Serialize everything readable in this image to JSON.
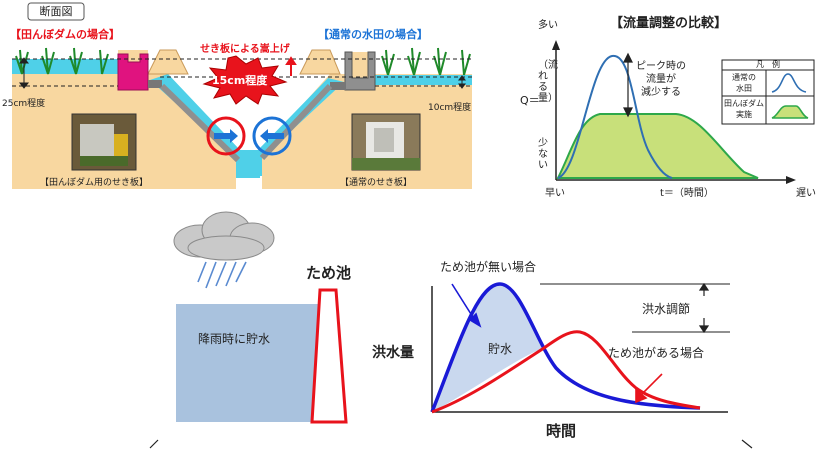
{
  "cross_section": {
    "tag": "断面図",
    "left_case": "【田んぼダムの場合】",
    "right_case": "【通常の水田の場合】",
    "weir_raise_label": "せき板による嵩上げ",
    "raise_amount": "15cm程度",
    "left_depth": "25cm程度",
    "right_depth": "10cm程度",
    "left_photo_caption": "【田んぼダム用のせき板】",
    "right_photo_caption": "【通常のせき板】",
    "colors": {
      "water": "#4fd0e8",
      "soil": "#f8d7a0",
      "dam_box": "#e0137f",
      "starburst": "#e8131c",
      "label_red": "#e8131c",
      "label_blue": "#1c73d6"
    }
  },
  "flow_chart": {
    "title": "【流量調整の比較】",
    "y_axis_top": "多い",
    "y_axis_bottom": "少ない",
    "y_axis_symbol": "Q＝",
    "y_axis_name": "（流れる量）",
    "x_axis_left": "早い",
    "x_axis_name": "t＝（時間）",
    "x_axis_right": "遅い",
    "annotation": [
      "ピーク時の",
      "流量が",
      "減少する"
    ],
    "legend": {
      "header": "凡　例",
      "rows": [
        {
          "label": [
            "通常の",
            "水田"
          ],
          "color": "#2f6fb3"
        },
        {
          "label": [
            "田んぼダム",
            "実施"
          ],
          "color": "#2ea84a"
        }
      ]
    }
  },
  "pond": {
    "pond_title": "ため池",
    "storage_label": "降雨時に貯水",
    "no_pond_label": "ため池が無い場合",
    "with_pond_label": "ため池がある場合",
    "storage_area_label": "貯水",
    "flood_control_label": "洪水調節",
    "y_axis": "洪水量",
    "x_axis": "時間",
    "colors": {
      "no_pond": "#1a1ad6",
      "with_pond": "#e8131c",
      "storage_fill": "#c9d8ee",
      "reservoir": "#a9c2de"
    }
  }
}
